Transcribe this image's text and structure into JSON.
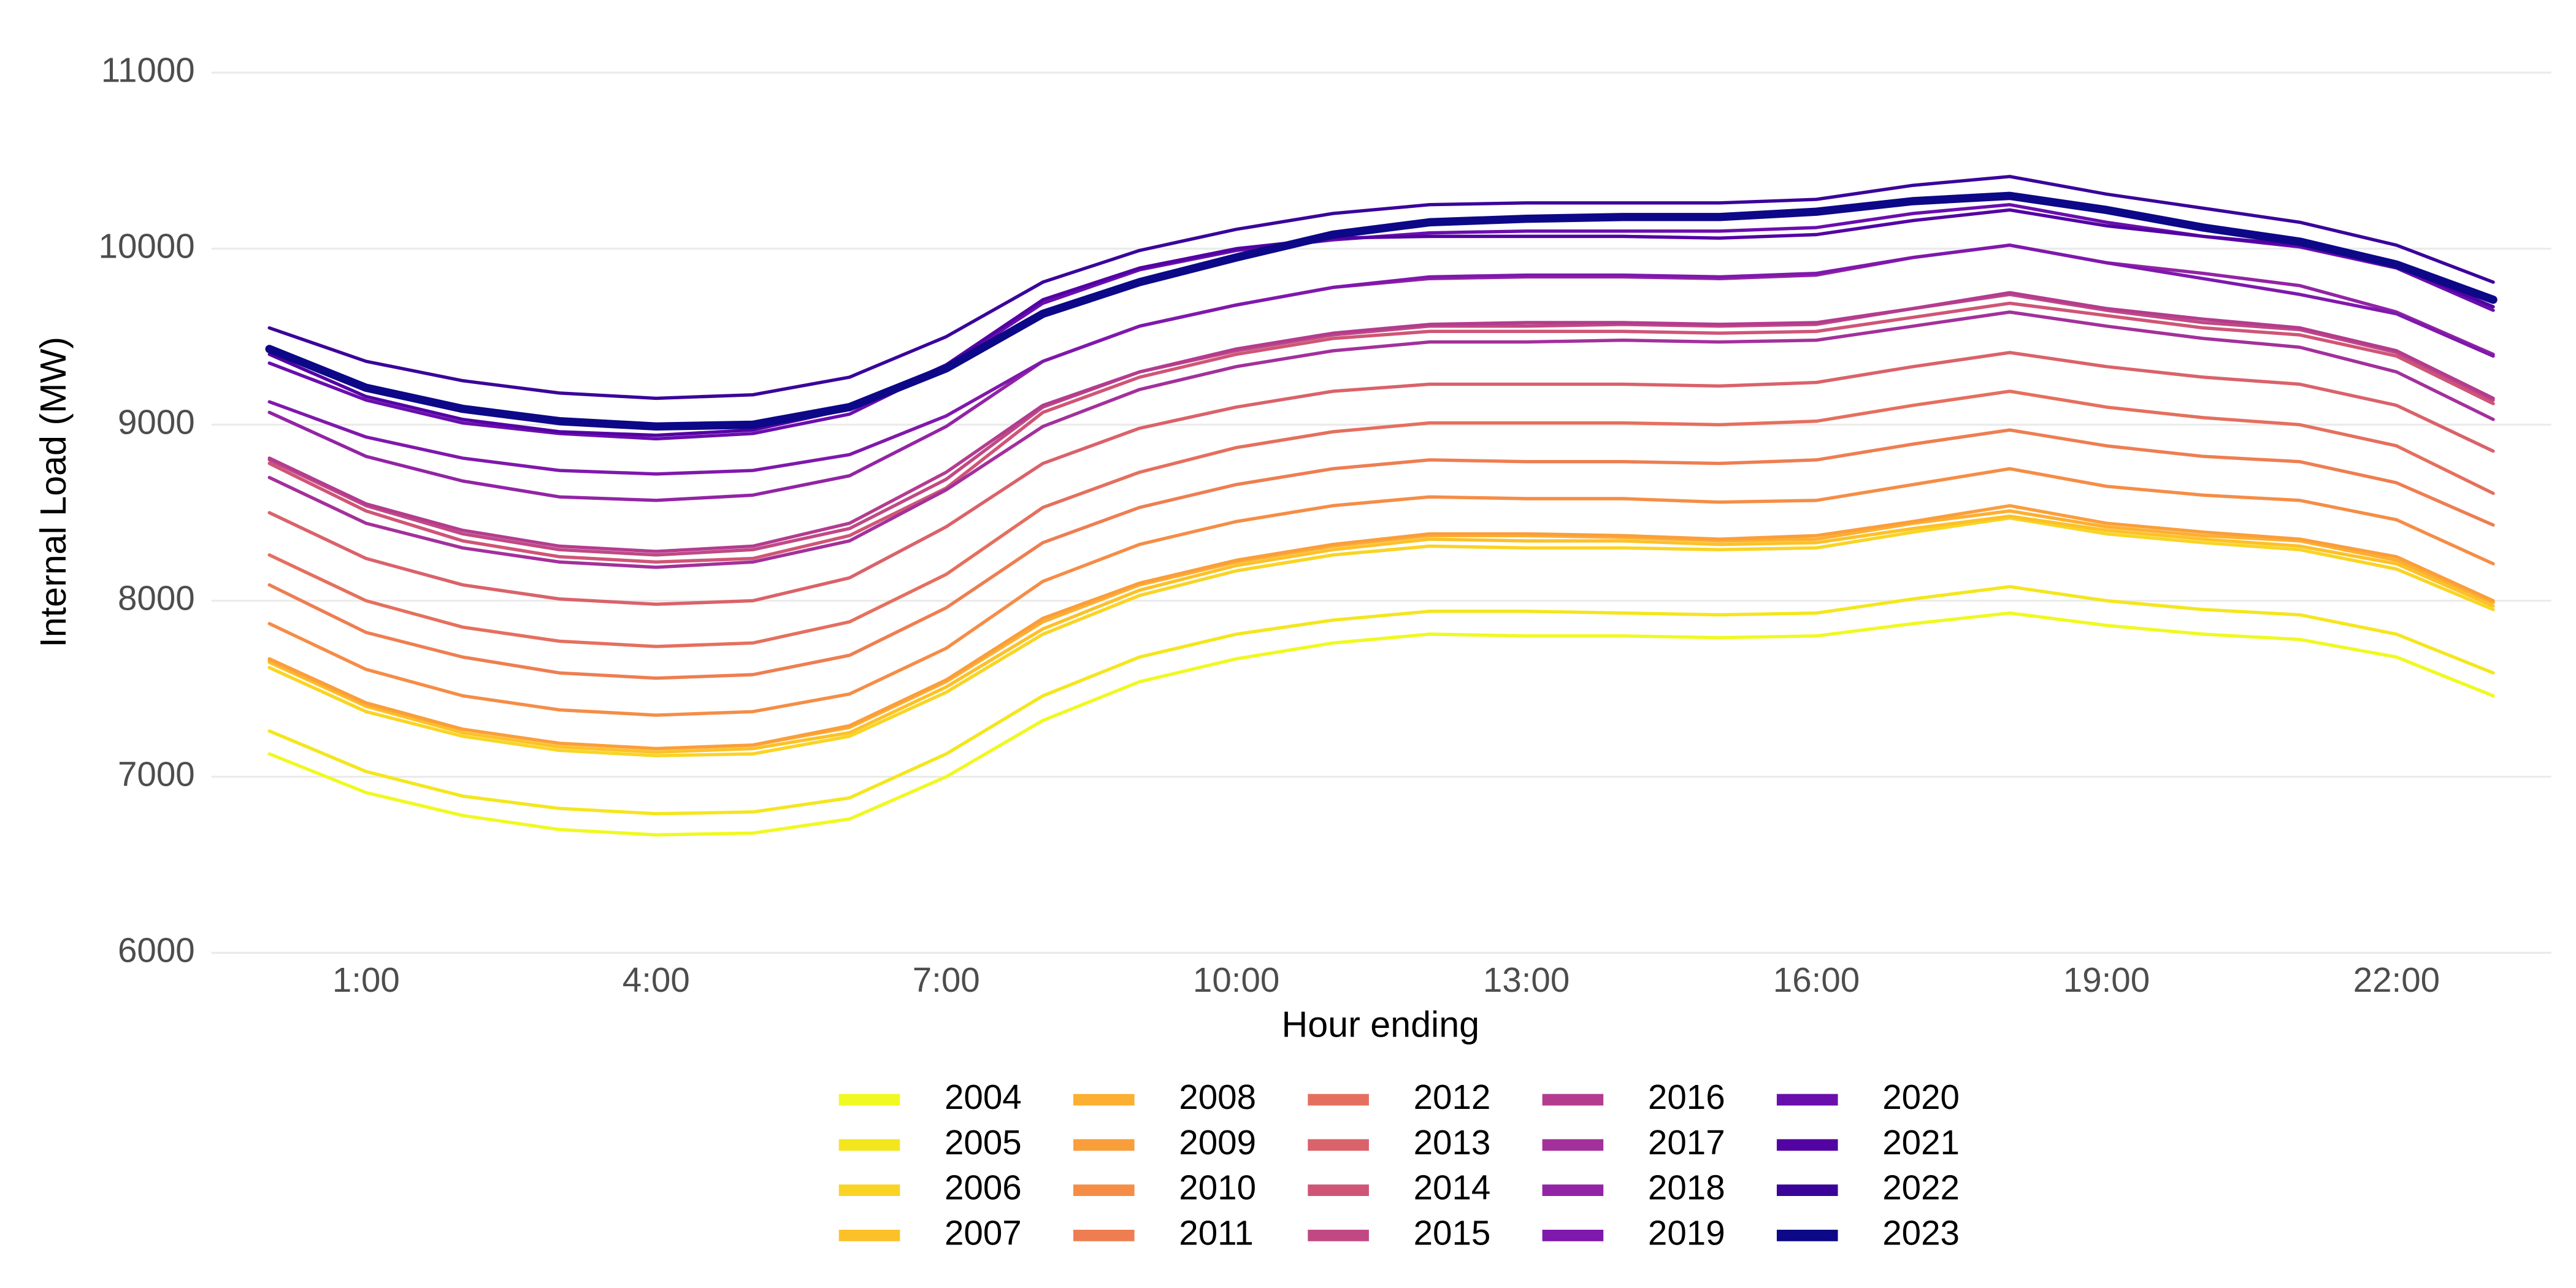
{
  "chart_data": {
    "type": "line",
    "x_label": "Hour ending",
    "y_label": "Internal Load (MW)",
    "x": [
      0,
      1,
      2,
      3,
      4,
      5,
      6,
      7,
      8,
      9,
      10,
      11,
      12,
      13,
      14,
      15,
      16,
      17,
      18,
      19,
      20,
      21,
      22,
      23
    ],
    "xlim": [
      -0.6,
      23.6
    ],
    "xticks": [
      {
        "value": 1,
        "label": "1:00"
      },
      {
        "value": 4,
        "label": "4:00"
      },
      {
        "value": 7,
        "label": "7:00"
      },
      {
        "value": 10,
        "label": "10:00"
      },
      {
        "value": 13,
        "label": "13:00"
      },
      {
        "value": 16,
        "label": "16:00"
      },
      {
        "value": 19,
        "label": "19:00"
      },
      {
        "value": 22,
        "label": "22:00"
      }
    ],
    "ylim": [
      6000,
      11000
    ],
    "yticks": [
      6000,
      7000,
      8000,
      9000,
      10000,
      11000
    ],
    "grid": "y",
    "legend": "bottom",
    "series": [
      {
        "name": "2004",
        "color": "#f0f921",
        "values": [
          7130,
          6910,
          6780,
          6700,
          6670,
          6680,
          6760,
          7000,
          7320,
          7540,
          7670,
          7760,
          7810,
          7800,
          7800,
          7790,
          7800,
          7870,
          7930,
          7860,
          7810,
          7780,
          7680,
          7460
        ]
      },
      {
        "name": "2005",
        "color": "#f4e61e",
        "values": [
          7260,
          7030,
          6890,
          6820,
          6790,
          6800,
          6880,
          7130,
          7460,
          7680,
          7810,
          7890,
          7940,
          7940,
          7930,
          7920,
          7930,
          8010,
          8080,
          8000,
          7950,
          7920,
          7810,
          7590
        ]
      },
      {
        "name": "2006",
        "color": "#f9d424",
        "values": [
          7620,
          7370,
          7230,
          7150,
          7120,
          7130,
          7230,
          7480,
          7810,
          8030,
          8170,
          8260,
          8310,
          8300,
          8300,
          8290,
          8300,
          8390,
          8470,
          8380,
          8330,
          8290,
          8180,
          7950
        ]
      },
      {
        "name": "2007",
        "color": "#fcc129",
        "values": [
          7650,
          7400,
          7250,
          7170,
          7140,
          7160,
          7250,
          7510,
          7840,
          8060,
          8200,
          8290,
          8350,
          8340,
          8340,
          8320,
          8330,
          8410,
          8480,
          8400,
          8350,
          8310,
          8210,
          7970
        ]
      },
      {
        "name": "2008",
        "color": "#fdaf31",
        "values": [
          7660,
          7410,
          7270,
          7190,
          7160,
          7180,
          7280,
          7540,
          7880,
          8090,
          8220,
          8310,
          8370,
          8370,
          8360,
          8340,
          8350,
          8440,
          8510,
          8420,
          8370,
          8340,
          8230,
          7990
        ]
      },
      {
        "name": "2009",
        "color": "#fa9e3b",
        "values": [
          7670,
          7420,
          7270,
          7190,
          7160,
          7180,
          7290,
          7550,
          7900,
          8100,
          8230,
          8320,
          8380,
          8380,
          8370,
          8350,
          8370,
          8450,
          8540,
          8440,
          8390,
          8350,
          8250,
          8000
        ]
      },
      {
        "name": "2010",
        "color": "#f58d46",
        "values": [
          7870,
          7610,
          7460,
          7380,
          7350,
          7370,
          7470,
          7730,
          8110,
          8320,
          8450,
          8540,
          8590,
          8580,
          8580,
          8560,
          8570,
          8660,
          8750,
          8650,
          8600,
          8570,
          8460,
          8210
        ]
      },
      {
        "name": "2011",
        "color": "#ee7e51",
        "values": [
          8090,
          7820,
          7680,
          7590,
          7560,
          7580,
          7690,
          7960,
          8330,
          8530,
          8660,
          8750,
          8800,
          8790,
          8790,
          8780,
          8800,
          8890,
          8970,
          8880,
          8820,
          8790,
          8670,
          8430
        ]
      },
      {
        "name": "2012",
        "color": "#e56f5e",
        "values": [
          8260,
          8000,
          7850,
          7770,
          7740,
          7760,
          7880,
          8150,
          8530,
          8730,
          8870,
          8960,
          9010,
          9010,
          9010,
          9000,
          9020,
          9110,
          9190,
          9100,
          9040,
          9000,
          8880,
          8610
        ]
      },
      {
        "name": "2013",
        "color": "#da626a",
        "values": [
          8500,
          8240,
          8090,
          8010,
          7980,
          8000,
          8130,
          8420,
          8780,
          8980,
          9100,
          9190,
          9230,
          9230,
          9230,
          9220,
          9240,
          9330,
          9410,
          9330,
          9270,
          9230,
          9110,
          8850
        ]
      },
      {
        "name": "2014",
        "color": "#cf5576",
        "values": [
          8780,
          8510,
          8340,
          8250,
          8220,
          8240,
          8370,
          8640,
          9070,
          9270,
          9400,
          9490,
          9530,
          9530,
          9530,
          9520,
          9530,
          9610,
          9690,
          9620,
          9550,
          9510,
          9390,
          9120
        ]
      },
      {
        "name": "2015",
        "color": "#c14983",
        "values": [
          8800,
          8540,
          8380,
          8290,
          8260,
          8290,
          8410,
          8690,
          9100,
          9300,
          9420,
          9510,
          9560,
          9560,
          9570,
          9560,
          9570,
          9660,
          9740,
          9650,
          9580,
          9540,
          9410,
          9140
        ]
      },
      {
        "name": "2016",
        "color": "#b33c8f",
        "values": [
          8810,
          8550,
          8400,
          8310,
          8280,
          8310,
          8440,
          8730,
          9110,
          9300,
          9430,
          9520,
          9570,
          9580,
          9580,
          9570,
          9580,
          9660,
          9750,
          9660,
          9600,
          9550,
          9420,
          9150
        ]
      },
      {
        "name": "2017",
        "color": "#a3309b",
        "values": [
          8700,
          8440,
          8300,
          8220,
          8190,
          8220,
          8340,
          8630,
          8990,
          9200,
          9330,
          9420,
          9470,
          9470,
          9480,
          9470,
          9480,
          9560,
          9640,
          9560,
          9490,
          9440,
          9300,
          9030
        ]
      },
      {
        "name": "2018",
        "color": "#9224a5",
        "values": [
          9070,
          8820,
          8680,
          8590,
          8570,
          8600,
          8710,
          8990,
          9360,
          9560,
          9680,
          9780,
          9830,
          9840,
          9840,
          9830,
          9850,
          9950,
          10020,
          9920,
          9860,
          9790,
          9640,
          9400
        ]
      },
      {
        "name": "2019",
        "color": "#7f18ac",
        "values": [
          9130,
          8930,
          8810,
          8740,
          8720,
          8740,
          8830,
          9050,
          9360,
          9560,
          9680,
          9780,
          9840,
          9850,
          9850,
          9840,
          9860,
          9950,
          10020,
          9920,
          9830,
          9740,
          9630,
          9390
        ]
      },
      {
        "name": "2020",
        "color": "#6a0ead",
        "values": [
          9350,
          9140,
          9010,
          8950,
          8920,
          8950,
          9060,
          9330,
          9690,
          9880,
          9990,
          10050,
          10090,
          10100,
          10100,
          10100,
          10120,
          10200,
          10250,
          10150,
          10070,
          10010,
          9890,
          9650
        ]
      },
      {
        "name": "2021",
        "color": "#5302a3",
        "values": [
          9400,
          9160,
          9030,
          8960,
          8940,
          8970,
          9090,
          9340,
          9710,
          9890,
          10000,
          10060,
          10070,
          10070,
          10070,
          10060,
          10080,
          10160,
          10220,
          10130,
          10070,
          10020,
          9900,
          9670
        ]
      },
      {
        "name": "2022",
        "color": "#3a049a",
        "values": [
          9550,
          9360,
          9250,
          9180,
          9150,
          9170,
          9270,
          9500,
          9810,
          9990,
          10110,
          10200,
          10250,
          10260,
          10260,
          10260,
          10280,
          10360,
          10410,
          10310,
          10230,
          10150,
          10020,
          9810
        ]
      },
      {
        "name": "2023",
        "color": "#0d0887",
        "values": [
          9430,
          9210,
          9090,
          9020,
          8990,
          9000,
          9100,
          9320,
          9630,
          9810,
          9950,
          10080,
          10150,
          10170,
          10180,
          10180,
          10210,
          10270,
          10300,
          10220,
          10120,
          10040,
          9910,
          9710
        ]
      }
    ]
  }
}
